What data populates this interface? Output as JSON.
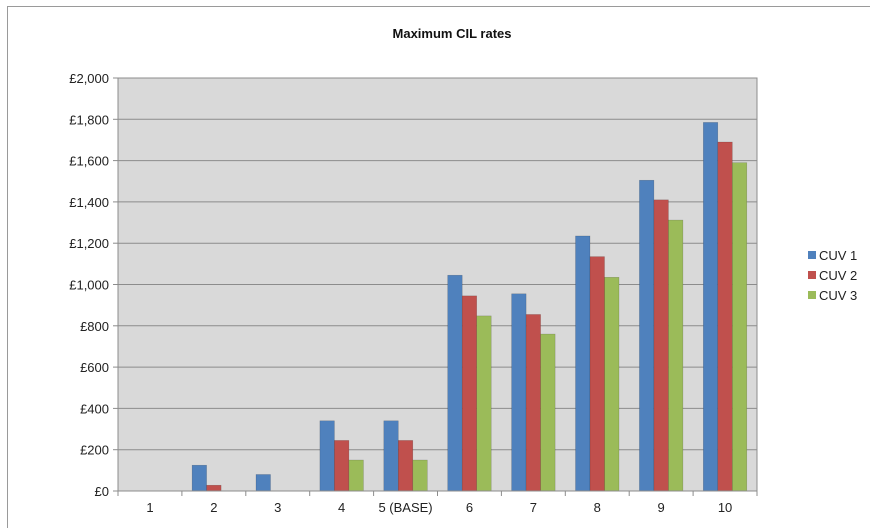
{
  "chart_data": {
    "type": "bar",
    "title": "Maximum CIL rates",
    "xlabel": "",
    "ylabel": "",
    "categories": [
      "1",
      "2",
      "3",
      "4",
      "5 (BASE)",
      "6",
      "7",
      "8",
      "9",
      "10"
    ],
    "y_tick_labels": [
      "£0",
      "£200",
      "£400",
      "£600",
      "£800",
      "£1,000",
      "£1,200",
      "£1,400",
      "£1,600",
      "£1,800",
      "£2,000"
    ],
    "ylim": [
      0,
      2000
    ],
    "grid": true,
    "legend_position": "right",
    "series": [
      {
        "name": "CUV 1",
        "color": "#4f81bd",
        "values": [
          0,
          125,
          80,
          340,
          340,
          1045,
          955,
          1235,
          1505,
          1785
        ]
      },
      {
        "name": "CUV 2",
        "color": "#c0504d",
        "values": [
          0,
          28,
          0,
          245,
          245,
          945,
          855,
          1135,
          1410,
          1690
        ]
      },
      {
        "name": "CUV 3",
        "color": "#9bbb59",
        "values": [
          0,
          0,
          0,
          150,
          150,
          848,
          760,
          1035,
          1312,
          1590
        ]
      }
    ]
  }
}
